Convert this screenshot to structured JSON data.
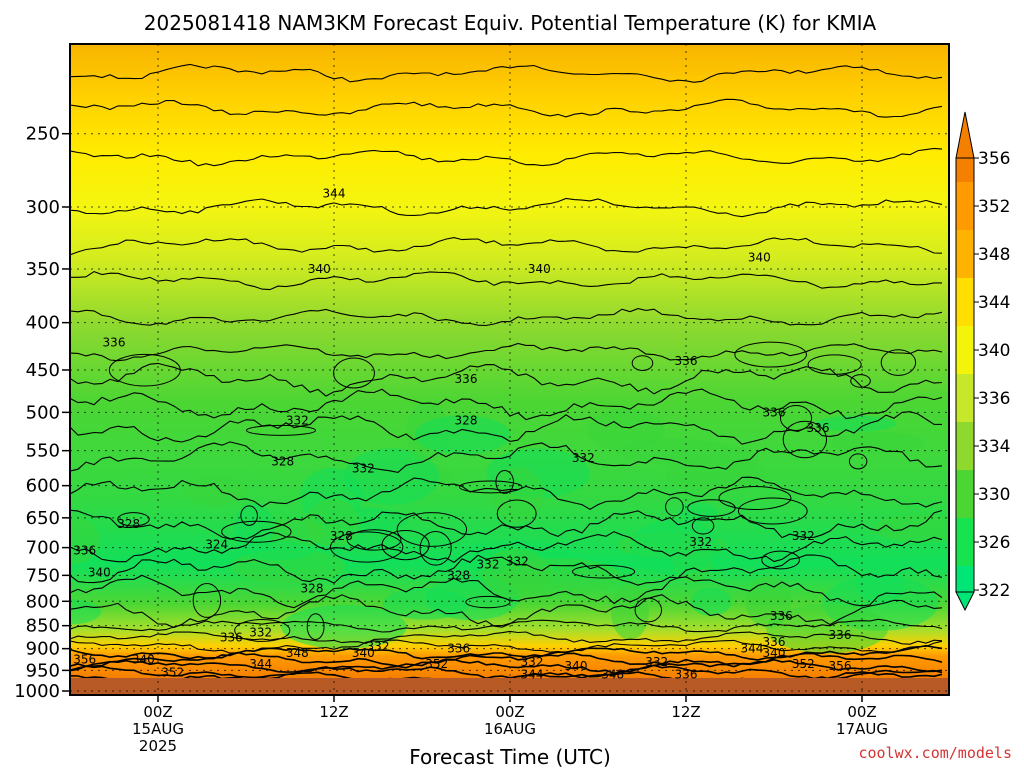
{
  "chart_data": {
    "type": "heatmap",
    "subtype": "filled-contour time-height cross section",
    "title": "2025081418 NAM3KM Forecast Equiv. Potential Temperature (K) for KMIA",
    "xlabel": "Forecast Time (UTC)",
    "ylabel": "",
    "credit": "coolwx.com/models",
    "y_axis": {
      "scale": "log (pressure, hPa)",
      "reversed": true,
      "ylim": [
        200,
        1010
      ],
      "ticks": [
        250,
        300,
        350,
        400,
        450,
        500,
        550,
        600,
        650,
        700,
        750,
        800,
        850,
        900,
        950,
        1000
      ]
    },
    "x_axis": {
      "ticks": [
        {
          "label_lines": [
            "00Z",
            "15AUG",
            "2025"
          ]
        },
        {
          "label_lines": [
            "12Z"
          ]
        },
        {
          "label_lines": [
            "00Z",
            "16AUG"
          ]
        },
        {
          "label_lines": [
            "12Z"
          ]
        },
        {
          "label_lines": [
            "00Z",
            "17AUG"
          ]
        }
      ]
    },
    "grid": true,
    "colorbar": {
      "placement": "right",
      "ticks": [
        322,
        326,
        330,
        334,
        336,
        340,
        344,
        348,
        352,
        356
      ],
      "colors": [
        "#00e676",
        "#17e34f",
        "#4cd634",
        "#8fd92f",
        "#c6e72a",
        "#f2f40c",
        "#ffde00",
        "#ffb300",
        "#ff9a00",
        "#f57f00"
      ]
    },
    "contour_labels": [
      {
        "text": "344",
        "time_h": 12,
        "p": 290
      },
      {
        "text": "340",
        "time_h": 11,
        "p": 350
      },
      {
        "text": "340",
        "time_h": 26,
        "p": 350
      },
      {
        "text": "340",
        "time_h": 41,
        "p": 340
      },
      {
        "text": "336",
        "time_h": -3,
        "p": 420
      },
      {
        "text": "336",
        "time_h": 36,
        "p": 440
      },
      {
        "text": "336",
        "time_h": 21,
        "p": 460
      },
      {
        "text": "336",
        "time_h": 42,
        "p": 500
      },
      {
        "text": "336",
        "time_h": 45,
        "p": 520
      },
      {
        "text": "332",
        "time_h": 9.5,
        "p": 510
      },
      {
        "text": "328",
        "time_h": 21,
        "p": 510
      },
      {
        "text": "332",
        "time_h": 29,
        "p": 560
      },
      {
        "text": "328",
        "time_h": 8.5,
        "p": 565
      },
      {
        "text": "328",
        "time_h": -2,
        "p": 660
      },
      {
        "text": "324",
        "time_h": 4,
        "p": 695
      },
      {
        "text": "328",
        "time_h": 12.5,
        "p": 680
      },
      {
        "text": "332",
        "time_h": 14,
        "p": 575
      },
      {
        "text": "332",
        "time_h": 37,
        "p": 690
      },
      {
        "text": "332",
        "time_h": 44,
        "p": 680
      },
      {
        "text": "336",
        "time_h": -5,
        "p": 705
      },
      {
        "text": "340",
        "time_h": -4,
        "p": 745
      },
      {
        "text": "328",
        "time_h": 20.5,
        "p": 750
      },
      {
        "text": "332",
        "time_h": 22.5,
        "p": 730
      },
      {
        "text": "332",
        "time_h": 24.5,
        "p": 725
      },
      {
        "text": "328",
        "time_h": 10.5,
        "p": 775
      },
      {
        "text": "336",
        "time_h": 42.5,
        "p": 830
      },
      {
        "text": "336",
        "time_h": 5,
        "p": 875
      },
      {
        "text": "332",
        "time_h": 7,
        "p": 865
      },
      {
        "text": "336",
        "time_h": 42,
        "p": 885
      },
      {
        "text": "336",
        "time_h": 46.5,
        "p": 870
      },
      {
        "text": "348",
        "time_h": 9.5,
        "p": 910
      },
      {
        "text": "340",
        "time_h": 14,
        "p": 910
      },
      {
        "text": "332",
        "time_h": 15,
        "p": 895
      },
      {
        "text": "336",
        "time_h": 20.5,
        "p": 900
      },
      {
        "text": "344",
        "time_h": 40.5,
        "p": 900
      },
      {
        "text": "340",
        "time_h": 42,
        "p": 910
      },
      {
        "text": "356",
        "time_h": -5,
        "p": 925
      },
      {
        "text": "340",
        "time_h": -1,
        "p": 925
      },
      {
        "text": "344",
        "time_h": 7,
        "p": 935
      },
      {
        "text": "352",
        "time_h": 19,
        "p": 935
      },
      {
        "text": "332",
        "time_h": 25.5,
        "p": 930
      },
      {
        "text": "340",
        "time_h": 28.5,
        "p": 940
      },
      {
        "text": "332",
        "time_h": 34,
        "p": 930
      },
      {
        "text": "352",
        "time_h": 44,
        "p": 935
      },
      {
        "text": "356",
        "time_h": 46.5,
        "p": 940
      },
      {
        "text": "352",
        "time_h": 1,
        "p": 955
      },
      {
        "text": "344",
        "time_h": 25.5,
        "p": 960
      },
      {
        "text": "348",
        "time_h": 31,
        "p": 960
      },
      {
        "text": "336",
        "time_h": 36,
        "p": 960
      }
    ]
  }
}
